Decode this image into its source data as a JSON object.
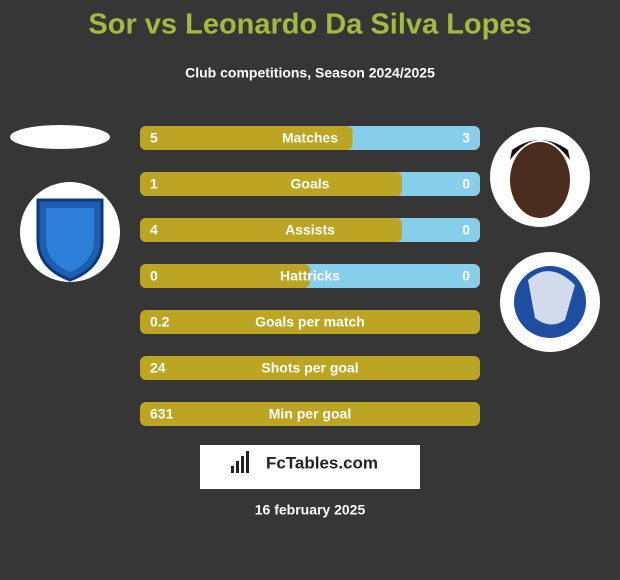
{
  "title": "Sor vs Leonardo Da Silva Lopes",
  "subtitle": "Club competitions, Season 2024/2025",
  "rows": [
    {
      "label": "Matches",
      "left": 5,
      "right": 3
    },
    {
      "label": "Goals",
      "left": 1,
      "right": 0
    },
    {
      "label": "Assists",
      "left": 4,
      "right": 0
    },
    {
      "label": "Hattricks",
      "left": 0,
      "right": 0
    },
    {
      "label": "Goals per match",
      "left": 0.2
    },
    {
      "label": "Shots per goal",
      "left": 24
    },
    {
      "label": "Min per goal",
      "left": 631
    }
  ],
  "brand": "FcTables.com",
  "date": "16 february 2025"
}
